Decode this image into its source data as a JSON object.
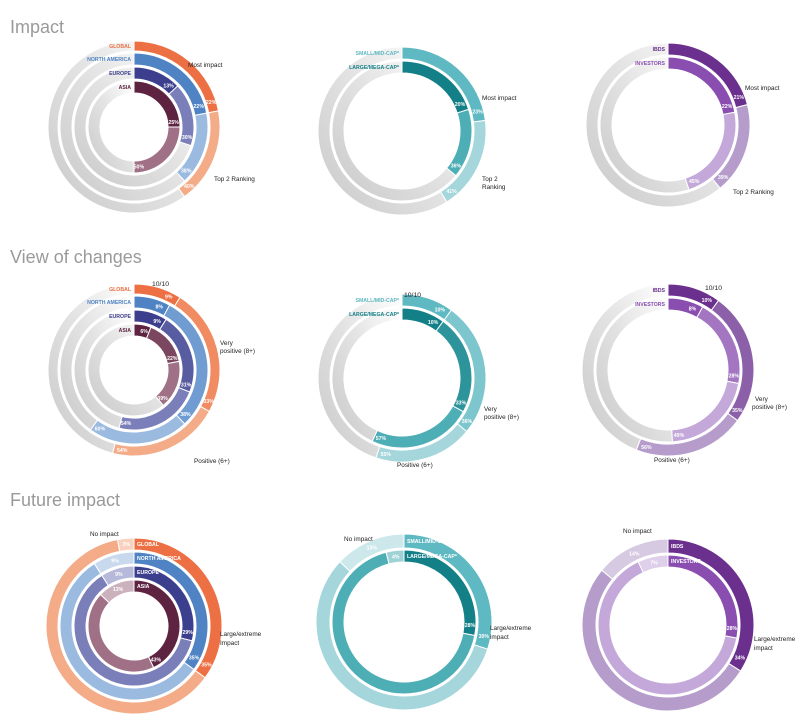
{
  "sections": [
    {
      "title": "Impact"
    },
    {
      "title": "View of changes"
    },
    {
      "title": "Future impact"
    }
  ],
  "colors": {
    "global": "#ec7043",
    "global_light": "#f4ab88",
    "north_america": "#4f83c4",
    "north_america_light": "#9bbae0",
    "europe": "#3c3f8e",
    "europe_light": "#7b7fb9",
    "asia": "#5d2341",
    "asia_light": "#a07186",
    "small_mid": "#5fb9c2",
    "small_mid_light": "#a4d6db",
    "large_mega": "#137f86",
    "large_mega_light": "#4eaeb5",
    "ibds": "#6b2f8d",
    "ibds_light": "#b59ccb",
    "investors": "#8a4db0",
    "investors_light": "#c3a8d9",
    "gray": "#d4d4d4"
  },
  "chart_data": [
    {
      "type": "donut",
      "section": "Impact",
      "series": [
        {
          "name": "GLOBAL",
          "values": [
            22,
            40
          ]
        },
        {
          "name": "NORTH AMERICA",
          "values": [
            22,
            38
          ]
        },
        {
          "name": "EUROPE",
          "values": [
            13,
            30
          ]
        },
        {
          "name": "ASIA",
          "values": [
            25,
            50
          ]
        }
      ],
      "categories": [
        "Most impact",
        "Top 2 Ranking"
      ]
    },
    {
      "type": "donut",
      "section": "Impact",
      "series": [
        {
          "name": "SMALL/MID-CAP*",
          "values": [
            23,
            41
          ]
        },
        {
          "name": "LARGE/MEGA-CAP*",
          "values": [
            20,
            36
          ]
        }
      ],
      "categories": [
        "Most impact",
        "Top 2 Ranking"
      ]
    },
    {
      "type": "donut",
      "section": "Impact",
      "series": [
        {
          "name": "IBDS",
          "values": [
            21,
            39
          ]
        },
        {
          "name": "INVESTORS",
          "values": [
            22,
            45
          ]
        }
      ],
      "categories": [
        "Most impact",
        "Top 2 Ranking"
      ]
    },
    {
      "type": "donut",
      "section": "View of changes",
      "top_label": "10/10",
      "series": [
        {
          "name": "GLOBAL",
          "values": [
            9,
            33,
            54
          ]
        },
        {
          "name": "NORTH AMERICA",
          "values": [
            8,
            38,
            60
          ]
        },
        {
          "name": "EUROPE",
          "values": [
            9,
            31,
            54
          ]
        },
        {
          "name": "ASIA",
          "values": [
            6,
            22,
            39
          ]
        }
      ],
      "categories": [
        "10/10",
        "Very positive (8+)",
        "Positive (6+)"
      ]
    },
    {
      "type": "donut",
      "section": "View of changes",
      "top_label": "10/10",
      "series": [
        {
          "name": "SMALL/MID-CAP*",
          "values": [
            10,
            36,
            55
          ]
        },
        {
          "name": "LARGE/MEGA-CAP*",
          "values": [
            10,
            33,
            57
          ]
        }
      ],
      "categories": [
        "10/10",
        "Very positive (8+)",
        "Positive (6+)"
      ]
    },
    {
      "type": "donut",
      "section": "View of changes",
      "top_label": "10/10",
      "series": [
        {
          "name": "IBDS",
          "values": [
            10,
            35,
            56
          ]
        },
        {
          "name": "INVESTORS",
          "values": [
            8,
            28,
            49
          ]
        }
      ],
      "categories": [
        "10/10",
        "Very positive (8+)",
        "Positive (6+)"
      ]
    },
    {
      "type": "donut",
      "section": "Future impact",
      "series": [
        {
          "name": "GLOBAL",
          "values": [
            35,
            3
          ]
        },
        {
          "name": "NORTH AMERICA",
          "values": [
            35,
            9
          ]
        },
        {
          "name": "EUROPE",
          "values": [
            29,
            9
          ]
        },
        {
          "name": "ASIA",
          "values": [
            43,
            13
          ]
        }
      ],
      "categories": [
        "Large/extreme Impact",
        "No impact"
      ]
    },
    {
      "type": "donut",
      "section": "Future impact",
      "series": [
        {
          "name": "SMALL/MID-CAP*",
          "values": [
            30,
            13
          ]
        },
        {
          "name": "LARGE/MEGA-CAP*",
          "values": [
            28,
            4
          ]
        }
      ],
      "categories": [
        "Large/extreme impact",
        "No impact"
      ]
    },
    {
      "type": "donut",
      "section": "Future impact",
      "series": [
        {
          "name": "IBDS",
          "values": [
            34,
            14
          ]
        },
        {
          "name": "INVESTORS",
          "values": [
            28,
            7
          ]
        }
      ],
      "categories": [
        "Large/extreme impact",
        "No impact"
      ]
    }
  ],
  "text": {
    "most_impact": "Most impact",
    "top2_line1": "Top 2",
    "top2_line2": "Ranking",
    "top2_ranking": "Top 2 Ranking",
    "ten": "10/10",
    "very_positive_line1": "Very",
    "very_positive_line2": "positive (8+)",
    "very_positive_line2b": "positive (8+)",
    "positive": "Positive (6+)",
    "no_impact": "No impact",
    "large_extreme_l1": "Large/extreme",
    "large_extreme_l2": "Impact",
    "large_extreme_l2b": "impact"
  }
}
